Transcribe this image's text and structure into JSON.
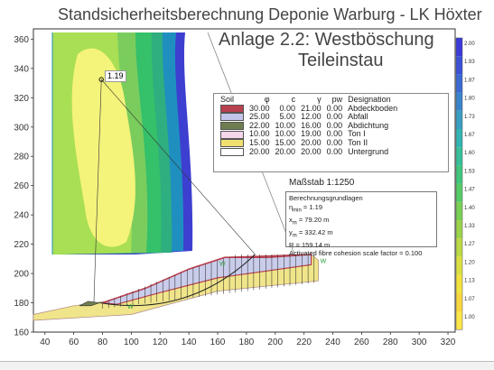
{
  "title": "Standsicherheitsberechnung Deponie Warburg - LK Höxter",
  "subtitle_line1": "Anlage 2.2: Westböschung",
  "subtitle_line2": "Teileinstau",
  "center_label": "1.19",
  "slip_marker": "W",
  "scale_label": "Maßstab 1:1250",
  "colorbar_ticks": [
    "2.00",
    "1.93",
    "1.87",
    "1.80",
    "1.73",
    "1.67",
    "1.60",
    "1.53",
    "1.47",
    "1.40",
    "1.33",
    "1.27",
    "1.20",
    "1.13",
    "1.07",
    "1.00"
  ],
  "colors": {
    "contour_low": "#f4f37a",
    "contour_mid": "#a9df54",
    "contour_green": "#35c06a",
    "contour_high": "#1f8fbf",
    "contour_top": "#3d3fd0",
    "section_fill": "#c9cdeb",
    "crest_red": "#b8404f",
    "underground_yellow": "#f0e58a"
  },
  "soil_table": {
    "headers": [
      "Soil",
      "φ",
      "c",
      "γ",
      "pw",
      "Designation"
    ],
    "rows": [
      {
        "phi": "30.00",
        "c": "0.00",
        "gamma": "21.00",
        "pw": "0.00",
        "name": "Abdeckboden",
        "color": "#b8404f"
      },
      {
        "phi": "25.00",
        "c": "5.00",
        "gamma": "12.00",
        "pw": "0.00",
        "name": "Abfall",
        "color": "#c3c6ea"
      },
      {
        "phi": "22.00",
        "c": "10.00",
        "gamma": "16.00",
        "pw": "0.00",
        "name": "Abdichtung",
        "color": "#6e7e50"
      },
      {
        "phi": "10.00",
        "c": "10.00",
        "gamma": "19.00",
        "pw": "0.00",
        "name": "Ton I",
        "color": "#f6d6ea"
      },
      {
        "phi": "15.00",
        "c": "15.00",
        "gamma": "20.00",
        "pw": "0.00",
        "name": "Ton II",
        "color": "#f0e070"
      },
      {
        "phi": "20.00",
        "c": "20.00",
        "gamma": "20.00",
        "pw": "0.00",
        "name": "Untergrund",
        "color": "#ffffff"
      }
    ]
  },
  "calc_box": {
    "heading": "Berechnungsgrundlagen",
    "eta_label": "η",
    "eta_sub": "min",
    "eta_value": " = 1.19",
    "xm_label": "x",
    "xm_sub": "m",
    "xm_value": " = 79.20 m",
    "ym_label": "y",
    "ym_sub": "m",
    "ym_value": " = 332.42 m",
    "r_line": "R = 159.14 m",
    "fibre_line": "Activated fibre cohesion scale factor = 0.100"
  },
  "chart_data": {
    "type": "contour",
    "x_ticks": [
      40,
      60,
      80,
      100,
      120,
      140,
      160,
      180,
      200,
      220,
      240,
      260,
      280,
      300,
      320
    ],
    "y_ticks": [
      160,
      180,
      200,
      220,
      240,
      260,
      280,
      300,
      320,
      340,
      360
    ],
    "xlim": [
      32,
      325
    ],
    "ylim": [
      160,
      367
    ],
    "critical_center": {
      "x": 79.2,
      "y": 332.42,
      "fos": 1.19
    },
    "radius": 159.14,
    "ground_surface": [
      [
        32,
        172
      ],
      [
        60,
        178
      ],
      [
        90,
        182
      ],
      [
        120,
        194
      ],
      [
        145,
        205
      ],
      [
        170,
        211
      ],
      [
        215,
        213
      ],
      [
        225,
        213
      ],
      [
        230,
        209
      ]
    ],
    "crest_line": [
      [
        80,
        180
      ],
      [
        110,
        190
      ],
      [
        140,
        203
      ],
      [
        165,
        211
      ],
      [
        195,
        211
      ],
      [
        225,
        213
      ]
    ]
  }
}
